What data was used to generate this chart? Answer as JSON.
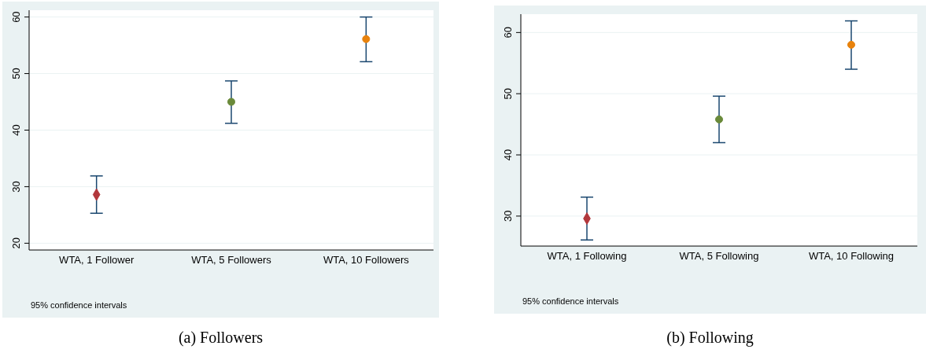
{
  "chart_data": [
    {
      "type": "scatter",
      "title": "(a) Followers",
      "categories": [
        "WTA, 1 Follower",
        "WTA, 5 Followers",
        "WTA, 10 Followers"
      ],
      "ylim": [
        18.8,
        61.2
      ],
      "yticks": [
        20,
        30,
        40,
        50,
        60
      ],
      "grid": "y",
      "annotations": [
        "95% confidence intervals"
      ],
      "series": [
        {
          "marker": "diamond",
          "color": "#b2373c",
          "values": [
            28.6,
            null,
            null
          ],
          "errors": [
            [
              25.3,
              31.9
            ],
            null,
            null
          ]
        },
        {
          "marker": "circle",
          "color": "#6a8a3a",
          "values": [
            null,
            45.0,
            null
          ],
          "errors": [
            null,
            [
              41.2,
              48.7
            ],
            null
          ]
        },
        {
          "marker": "circle",
          "color": "#e8820c",
          "values": [
            null,
            null,
            56.1
          ],
          "errors": [
            null,
            null,
            [
              52.1,
              60.0
            ]
          ]
        }
      ]
    },
    {
      "type": "scatter",
      "title": "(b) Following",
      "categories": [
        "WTA, 1 Following",
        "WTA, 5 Following",
        "WTA, 10 Following"
      ],
      "ylim": [
        25.1,
        63.0
      ],
      "yticks": [
        30,
        40,
        50,
        60
      ],
      "grid": "y",
      "annotations": [
        "95% confidence intervals"
      ],
      "series": [
        {
          "marker": "diamond",
          "color": "#b2373c",
          "values": [
            29.6,
            null,
            null
          ],
          "errors": [
            [
              26.1,
              33.1
            ],
            null,
            null
          ]
        },
        {
          "marker": "circle",
          "color": "#6a8a3a",
          "values": [
            null,
            45.8,
            null
          ],
          "errors": [
            null,
            [
              42.0,
              49.6
            ],
            null
          ]
        },
        {
          "marker": "circle",
          "color": "#e8820c",
          "values": [
            null,
            null,
            58.0
          ],
          "errors": [
            null,
            null,
            [
              54.0,
              61.9
            ]
          ]
        }
      ]
    }
  ]
}
